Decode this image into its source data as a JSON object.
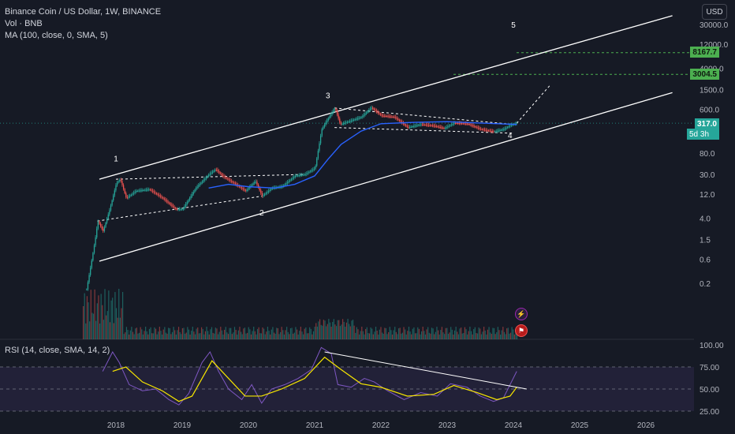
{
  "legend": {
    "title": "Binance Coin / US Dollar, 1W, BINANCE",
    "volume": "Vol · BNB",
    "ma": "MA (100, close, 0, SMA, 5)",
    "rsi": "RSI (14, close, SMA, 14, 2)"
  },
  "currency_button": "USD",
  "tags": {
    "target_upper": "8167.7",
    "target_lower": "3004.5",
    "current_price": "317.0",
    "countdown": "5d 3h"
  },
  "colors": {
    "background": "#161a25",
    "candle_up": "#26a69a",
    "candle_down": "#ef5350",
    "ma_line": "#2962ff",
    "rsi_line": "#7e57c2",
    "rsi_ma": "#f7e600",
    "channel": "#ffffff",
    "target_line": "#4caf50"
  },
  "icons": {
    "event1": "lightning-icon",
    "event2": "flag-icon"
  },
  "chart_data": [
    {
      "type": "candlestick",
      "title": "Binance Coin / US Dollar, 1W, BINANCE",
      "y_scale": "log",
      "y_ticks": [
        "30000.0",
        "12000.0",
        "4000.0",
        "1500.0",
        "600.0",
        "80.0",
        "30.0",
        "12.0",
        "4.0",
        "1.5",
        "0.6",
        "0.2"
      ],
      "x_ticks": [
        "2018",
        "2019",
        "2020",
        "2021",
        "2022",
        "2023",
        "2024",
        "2025",
        "2026"
      ],
      "price_path": [
        {
          "t": 2017.55,
          "v": 0.15
        },
        {
          "t": 2017.62,
          "v": 0.5
        },
        {
          "t": 2017.68,
          "v": 1.5
        },
        {
          "t": 2017.72,
          "v": 3.5
        },
        {
          "t": 2017.8,
          "v": 2.2
        },
        {
          "t": 2017.9,
          "v": 6.0
        },
        {
          "t": 2018.0,
          "v": 20
        },
        {
          "t": 2018.06,
          "v": 24
        },
        {
          "t": 2018.15,
          "v": 10
        },
        {
          "t": 2018.3,
          "v": 14
        },
        {
          "t": 2018.5,
          "v": 15
        },
        {
          "t": 2018.7,
          "v": 10
        },
        {
          "t": 2018.9,
          "v": 6
        },
        {
          "t": 2019.0,
          "v": 6
        },
        {
          "t": 2019.2,
          "v": 16
        },
        {
          "t": 2019.4,
          "v": 30
        },
        {
          "t": 2019.5,
          "v": 38
        },
        {
          "t": 2019.6,
          "v": 28
        },
        {
          "t": 2019.8,
          "v": 19
        },
        {
          "t": 2019.95,
          "v": 14
        },
        {
          "t": 2020.1,
          "v": 22
        },
        {
          "t": 2020.2,
          "v": 11
        },
        {
          "t": 2020.35,
          "v": 16
        },
        {
          "t": 2020.5,
          "v": 17
        },
        {
          "t": 2020.7,
          "v": 28
        },
        {
          "t": 2020.85,
          "v": 30
        },
        {
          "t": 2021.0,
          "v": 40
        },
        {
          "t": 2021.1,
          "v": 240
        },
        {
          "t": 2021.2,
          "v": 400
        },
        {
          "t": 2021.3,
          "v": 640
        },
        {
          "t": 2021.38,
          "v": 300
        },
        {
          "t": 2021.5,
          "v": 340
        },
        {
          "t": 2021.7,
          "v": 420
        },
        {
          "t": 2021.85,
          "v": 650
        },
        {
          "t": 2022.0,
          "v": 450
        },
        {
          "t": 2022.2,
          "v": 420
        },
        {
          "t": 2022.4,
          "v": 260
        },
        {
          "t": 2022.6,
          "v": 300
        },
        {
          "t": 2022.8,
          "v": 280
        },
        {
          "t": 2022.95,
          "v": 250
        },
        {
          "t": 2023.1,
          "v": 320
        },
        {
          "t": 2023.3,
          "v": 310
        },
        {
          "t": 2023.5,
          "v": 240
        },
        {
          "t": 2023.7,
          "v": 215
        },
        {
          "t": 2023.85,
          "v": 240
        },
        {
          "t": 2023.95,
          "v": 290
        },
        {
          "t": 2024.05,
          "v": 317
        }
      ],
      "ma_100": [
        {
          "t": 2019.4,
          "v": 16
        },
        {
          "t": 2019.7,
          "v": 19
        },
        {
          "t": 2020.0,
          "v": 17
        },
        {
          "t": 2020.4,
          "v": 16
        },
        {
          "t": 2020.7,
          "v": 19
        },
        {
          "t": 2021.0,
          "v": 28
        },
        {
          "t": 2021.2,
          "v": 60
        },
        {
          "t": 2021.4,
          "v": 120
        },
        {
          "t": 2021.7,
          "v": 220
        },
        {
          "t": 2022.0,
          "v": 310
        },
        {
          "t": 2022.5,
          "v": 330
        },
        {
          "t": 2023.0,
          "v": 340
        },
        {
          "t": 2023.5,
          "v": 320
        },
        {
          "t": 2024.05,
          "v": 300
        }
      ],
      "annotations": [
        {
          "label": "1",
          "t": 2018.0,
          "v": 55
        },
        {
          "label": "2",
          "t": 2020.2,
          "v": 4.5
        },
        {
          "label": "3",
          "t": 2021.2,
          "v": 1000
        },
        {
          "label": "4",
          "t": 2023.95,
          "v": 160
        },
        {
          "label": "5",
          "t": 2024.0,
          "v": 26000
        }
      ],
      "current_price": 317.0,
      "targets": [
        8167.7,
        3004.5
      ]
    },
    {
      "type": "line",
      "title": "RSI (14, close, SMA, 14, 2)",
      "y_ticks": [
        "100.00",
        "75.00",
        "50.00",
        "25.00"
      ],
      "ylim": [
        25,
        100
      ],
      "rsi": [
        {
          "t": 2017.8,
          "v": 70
        },
        {
          "t": 2017.95,
          "v": 92
        },
        {
          "t": 2018.05,
          "v": 80
        },
        {
          "t": 2018.2,
          "v": 55
        },
        {
          "t": 2018.4,
          "v": 48
        },
        {
          "t": 2018.6,
          "v": 50
        },
        {
          "t": 2018.8,
          "v": 38
        },
        {
          "t": 2018.95,
          "v": 32
        },
        {
          "t": 2019.1,
          "v": 45
        },
        {
          "t": 2019.3,
          "v": 80
        },
        {
          "t": 2019.42,
          "v": 92
        },
        {
          "t": 2019.55,
          "v": 70
        },
        {
          "t": 2019.7,
          "v": 50
        },
        {
          "t": 2019.9,
          "v": 38
        },
        {
          "t": 2020.05,
          "v": 55
        },
        {
          "t": 2020.2,
          "v": 34
        },
        {
          "t": 2020.35,
          "v": 50
        },
        {
          "t": 2020.55,
          "v": 55
        },
        {
          "t": 2020.75,
          "v": 62
        },
        {
          "t": 2020.95,
          "v": 72
        },
        {
          "t": 2021.1,
          "v": 97
        },
        {
          "t": 2021.25,
          "v": 90
        },
        {
          "t": 2021.35,
          "v": 55
        },
        {
          "t": 2021.55,
          "v": 52
        },
        {
          "t": 2021.75,
          "v": 62
        },
        {
          "t": 2021.9,
          "v": 58
        },
        {
          "t": 2022.1,
          "v": 48
        },
        {
          "t": 2022.35,
          "v": 38
        },
        {
          "t": 2022.6,
          "v": 46
        },
        {
          "t": 2022.85,
          "v": 42
        },
        {
          "t": 2023.05,
          "v": 56
        },
        {
          "t": 2023.3,
          "v": 52
        },
        {
          "t": 2023.5,
          "v": 42
        },
        {
          "t": 2023.7,
          "v": 36
        },
        {
          "t": 2023.85,
          "v": 40
        },
        {
          "t": 2023.97,
          "v": 58
        },
        {
          "t": 2024.05,
          "v": 70
        }
      ],
      "rsi_ma": [
        {
          "t": 2017.95,
          "v": 70
        },
        {
          "t": 2018.15,
          "v": 75
        },
        {
          "t": 2018.4,
          "v": 58
        },
        {
          "t": 2018.7,
          "v": 48
        },
        {
          "t": 2018.95,
          "v": 36
        },
        {
          "t": 2019.15,
          "v": 42
        },
        {
          "t": 2019.45,
          "v": 82
        },
        {
          "t": 2019.7,
          "v": 62
        },
        {
          "t": 2019.95,
          "v": 42
        },
        {
          "t": 2020.2,
          "v": 42
        },
        {
          "t": 2020.5,
          "v": 50
        },
        {
          "t": 2020.85,
          "v": 62
        },
        {
          "t": 2021.15,
          "v": 86
        },
        {
          "t": 2021.4,
          "v": 72
        },
        {
          "t": 2021.7,
          "v": 56
        },
        {
          "t": 2022.0,
          "v": 52
        },
        {
          "t": 2022.4,
          "v": 42
        },
        {
          "t": 2022.8,
          "v": 44
        },
        {
          "t": 2023.1,
          "v": 54
        },
        {
          "t": 2023.45,
          "v": 46
        },
        {
          "t": 2023.75,
          "v": 38
        },
        {
          "t": 2023.95,
          "v": 42
        },
        {
          "t": 2024.05,
          "v": 52
        }
      ],
      "trendline": [
        {
          "t": 2021.15,
          "v": 92
        },
        {
          "t": 2024.2,
          "v": 50
        }
      ]
    }
  ]
}
